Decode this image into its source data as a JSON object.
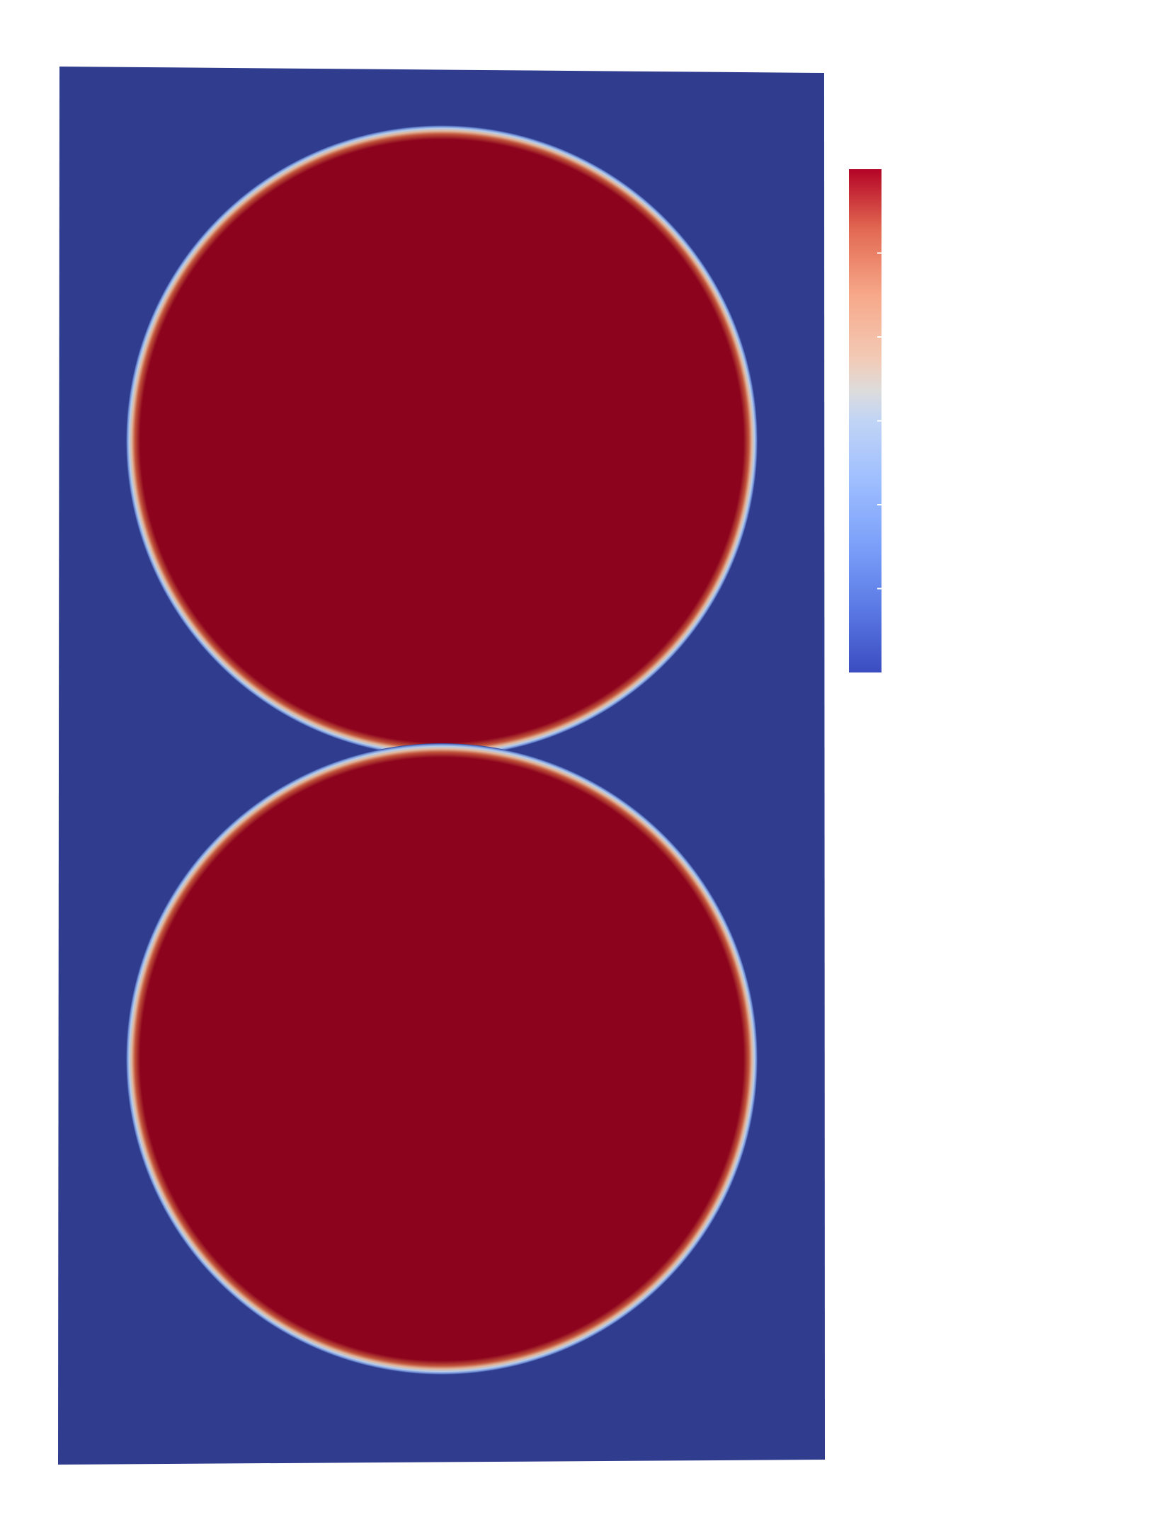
{
  "scene": {
    "description_free": true,
    "domain_background_color": "#303d8e",
    "droplet_core_color": "#8c031d",
    "page_background_color": "#ffffff",
    "droplet_count": 2
  },
  "colorbar": {
    "colormap": "coolwarm",
    "orientation": "vertical",
    "stops": [
      {
        "t": 0.0,
        "color": "#3b4cc0"
      },
      {
        "t": 0.12,
        "color": "#5977e3"
      },
      {
        "t": 0.25,
        "color": "#7b9ff9"
      },
      {
        "t": 0.38,
        "color": "#9ebeff"
      },
      {
        "t": 0.5,
        "color": "#c0d4f5"
      },
      {
        "t": 0.56,
        "color": "#dddcdc"
      },
      {
        "t": 0.62,
        "color": "#f2cbb7"
      },
      {
        "t": 0.75,
        "color": "#f7a889"
      },
      {
        "t": 0.88,
        "color": "#e26952"
      },
      {
        "t": 1.0,
        "color": "#b40426"
      }
    ],
    "tick_count": 5,
    "tick_labels": []
  }
}
